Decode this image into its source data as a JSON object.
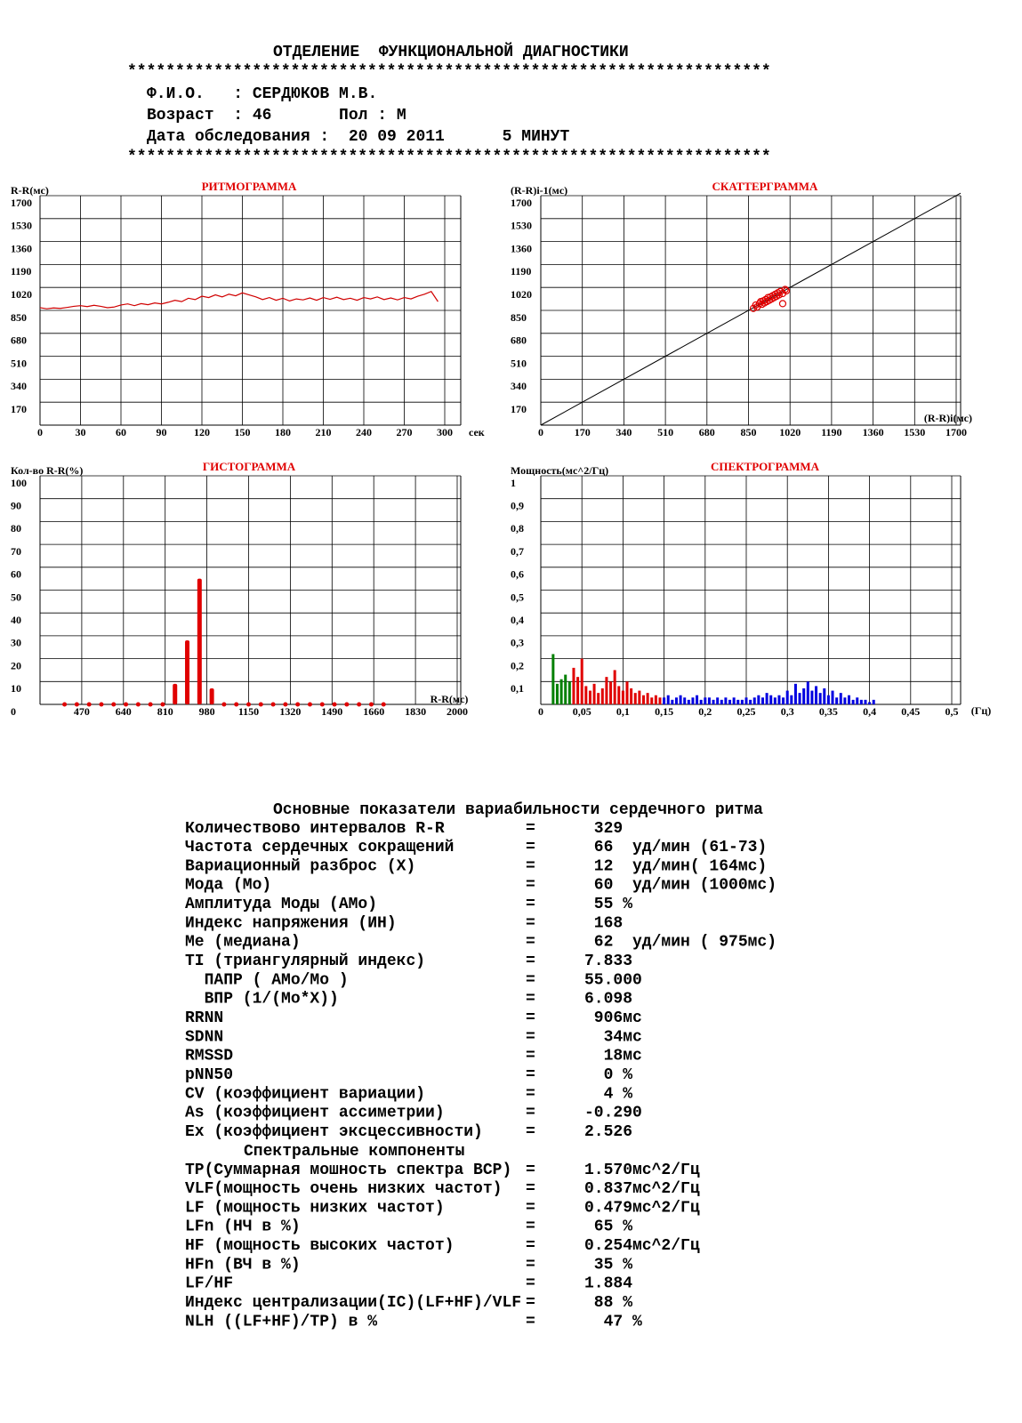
{
  "header": {
    "title": "ОТДЕЛЕНИЕ  ФУНКЦИОНАЛЬНОЙ ДИАГНОСТИКИ",
    "rule": "*******************************************************************",
    "lines": [
      "Ф.И.О.   : СЕРДЮКОВ М.В.",
      "Возраст  : 46       Пол : М",
      "Дата обследования :  20 09 2011      5 МИНУТ"
    ]
  },
  "chart_data": [
    {
      "type": "line",
      "title": "РИТМОГРАММА",
      "ylabel": "R-R(мс)",
      "xlabel": "сек",
      "color": "#d00000",
      "x": [
        0,
        5,
        10,
        15,
        20,
        25,
        30,
        35,
        40,
        45,
        50,
        55,
        60,
        65,
        70,
        75,
        80,
        85,
        90,
        95,
        100,
        105,
        110,
        115,
        120,
        125,
        130,
        135,
        140,
        145,
        150,
        155,
        160,
        165,
        170,
        175,
        180,
        185,
        190,
        195,
        200,
        205,
        210,
        215,
        220,
        225,
        230,
        235,
        240,
        245,
        250,
        255,
        260,
        265,
        270,
        275,
        280,
        285,
        290,
        295
      ],
      "values": [
        870,
        862,
        868,
        865,
        872,
        880,
        885,
        878,
        888,
        880,
        870,
        875,
        890,
        898,
        885,
        900,
        892,
        905,
        898,
        910,
        925,
        915,
        940,
        930,
        955,
        945,
        965,
        950,
        970,
        958,
        980,
        965,
        950,
        930,
        945,
        925,
        940,
        920,
        935,
        928,
        942,
        925,
        945,
        932,
        948,
        930,
        940,
        925,
        945,
        935,
        950,
        930,
        942,
        928,
        945,
        935,
        955,
        970,
        990,
        915
      ],
      "xlim": [
        0,
        300
      ],
      "ylim": [
        0,
        1700
      ],
      "xticks": [
        0,
        30,
        60,
        90,
        120,
        150,
        180,
        210,
        240,
        270,
        300
      ],
      "yticks": [
        170,
        340,
        510,
        680,
        850,
        1020,
        1190,
        1360,
        1530,
        1700
      ],
      "grid": true
    },
    {
      "type": "scatter",
      "title": "СКАТТЕРГРАММА",
      "ylabel": "(R-R)i-1(мс)",
      "xlabel": "(R-R)i(мс)",
      "color": "#e00000",
      "diagonal": true,
      "x": [
        870,
        880,
        885,
        895,
        900,
        905,
        910,
        915,
        920,
        925,
        930,
        935,
        940,
        945,
        950,
        955,
        960,
        965,
        970,
        975,
        980,
        990,
        1000,
        1005,
        990
      ],
      "values": [
        865,
        890,
        875,
        900,
        915,
        895,
        920,
        905,
        930,
        915,
        945,
        925,
        950,
        935,
        960,
        945,
        970,
        955,
        980,
        965,
        990,
        975,
        1005,
        995,
        900
      ],
      "xlim": [
        0,
        1700
      ],
      "ylim": [
        0,
        1700
      ],
      "xticks": [
        0,
        170,
        340,
        510,
        680,
        850,
        1020,
        1190,
        1360,
        1530,
        1700
      ],
      "yticks": [
        170,
        340,
        510,
        680,
        850,
        1020,
        1190,
        1360,
        1530,
        1700
      ],
      "grid": true
    },
    {
      "type": "bar",
      "title": "ГИСТОГРАММА",
      "ylabel": "Кол-во R-R(%)",
      "xlabel": "R-R(мс)",
      "color": "#e00000",
      "zero_markers": true,
      "x": [
        400,
        450,
        500,
        550,
        600,
        650,
        700,
        750,
        800,
        850,
        900,
        950,
        1000,
        1050,
        1100,
        1150,
        1200,
        1250,
        1300,
        1350,
        1400,
        1450,
        1500,
        1550,
        1600,
        1650,
        1700
      ],
      "values": [
        0,
        0,
        0,
        0,
        0,
        0,
        0,
        0,
        0,
        9,
        28,
        55,
        7,
        0,
        0,
        0,
        0,
        0,
        0,
        0,
        0,
        0,
        0,
        0,
        0,
        0,
        0
      ],
      "xlim": [
        300,
        2000
      ],
      "ylim": [
        0,
        100
      ],
      "xticks": [
        470,
        640,
        810,
        980,
        1150,
        1320,
        1490,
        1660,
        1830,
        2000
      ],
      "yticks": [
        0,
        10,
        20,
        30,
        40,
        50,
        60,
        70,
        80,
        90,
        100
      ],
      "grid": true
    },
    {
      "type": "bar",
      "title": "СПЕКТРОГРАММА",
      "ylabel": "Мощность(мс^2/Гц)",
      "xlabel": "(Гц)",
      "series": [
        {
          "color": "#008000",
          "x": [
            0.015,
            0.02,
            0.025,
            0.03,
            0.035
          ],
          "values": [
            0.22,
            0.09,
            0.11,
            0.13,
            0.1
          ]
        },
        {
          "color": "#e00000",
          "x": [
            0.04,
            0.045,
            0.05,
            0.055,
            0.06,
            0.065,
            0.07,
            0.075,
            0.08,
            0.085,
            0.09,
            0.095,
            0.1,
            0.105,
            0.11,
            0.115,
            0.12,
            0.125,
            0.13,
            0.135,
            0.14,
            0.145
          ],
          "values": [
            0.16,
            0.12,
            0.2,
            0.08,
            0.06,
            0.09,
            0.05,
            0.07,
            0.12,
            0.1,
            0.15,
            0.08,
            0.06,
            0.1,
            0.07,
            0.05,
            0.06,
            0.04,
            0.05,
            0.03,
            0.04,
            0.03
          ]
        },
        {
          "color": "#0000e0",
          "x": [
            0.15,
            0.155,
            0.16,
            0.165,
            0.17,
            0.175,
            0.18,
            0.185,
            0.19,
            0.195,
            0.2,
            0.205,
            0.21,
            0.215,
            0.22,
            0.225,
            0.23,
            0.235,
            0.24,
            0.245,
            0.25,
            0.255,
            0.26,
            0.265,
            0.27,
            0.275,
            0.28,
            0.285,
            0.29,
            0.295,
            0.3,
            0.305,
            0.31,
            0.315,
            0.32,
            0.325,
            0.33,
            0.335,
            0.34,
            0.345,
            0.35,
            0.355,
            0.36,
            0.365,
            0.37,
            0.375,
            0.38,
            0.385,
            0.39,
            0.395,
            0.4,
            0.405
          ],
          "values": [
            0.03,
            0.04,
            0.02,
            0.03,
            0.04,
            0.03,
            0.02,
            0.03,
            0.04,
            0.02,
            0.03,
            0.03,
            0.02,
            0.03,
            0.02,
            0.03,
            0.02,
            0.03,
            0.02,
            0.02,
            0.03,
            0.02,
            0.03,
            0.04,
            0.03,
            0.05,
            0.04,
            0.03,
            0.04,
            0.03,
            0.06,
            0.04,
            0.09,
            0.05,
            0.07,
            0.1,
            0.06,
            0.08,
            0.05,
            0.07,
            0.04,
            0.06,
            0.03,
            0.05,
            0.03,
            0.04,
            0.02,
            0.03,
            0.02,
            0.02,
            0.01,
            0.02
          ]
        }
      ],
      "xlim": [
        0,
        0.5
      ],
      "ylim": [
        0,
        1
      ],
      "xticks": [
        0,
        {
          "value": 0.05,
          "label": "0,05"
        },
        {
          "value": 0.1,
          "label": "0,1"
        },
        {
          "value": 0.15,
          "label": "0,15"
        },
        {
          "value": 0.2,
          "label": "0,2"
        },
        {
          "value": 0.25,
          "label": "0,25"
        },
        {
          "value": 0.3,
          "label": "0,3"
        },
        {
          "value": 0.35,
          "label": "0,35"
        },
        {
          "value": 0.4,
          "label": "0,4"
        },
        {
          "value": 0.45,
          "label": "0,45"
        },
        {
          "value": 0.5,
          "label": "0,5"
        }
      ],
      "yticks": [
        {
          "value": 0.1,
          "label": "0,1"
        },
        {
          "value": 0.2,
          "label": "0,2"
        },
        {
          "value": 0.3,
          "label": "0,3"
        },
        {
          "value": 0.4,
          "label": "0,4"
        },
        {
          "value": 0.5,
          "label": "0,5"
        },
        {
          "value": 0.6,
          "label": "0,6"
        },
        {
          "value": 0.7,
          "label": "0,7"
        },
        {
          "value": 0.8,
          "label": "0,8"
        },
        {
          "value": 0.9,
          "label": "0,9"
        },
        1
      ],
      "grid": true
    }
  ],
  "table": {
    "title": "Основные показатели вариабильности сердечного ритма",
    "rows": [
      [
        "Количествово интервалов R-R",
        "=",
        " 329"
      ],
      [
        "Частота сердечных сокращений",
        "=",
        " 66  уд/мин (61-73)"
      ],
      [
        "Вариационный разброс (Х)",
        "=",
        " 12  уд/мин( 164мс)"
      ],
      [
        "Мода (Мо)",
        "=",
        " 60  уд/мин (1000мс)"
      ],
      [
        "Амплитуда Моды (АМо)",
        "=",
        " 55 %"
      ],
      [
        "Индекс напряжения (ИН)",
        "=",
        " 168"
      ],
      [
        "Ме (медиана)",
        "=",
        " 62  уд/мин ( 975мс)"
      ],
      [
        "TI (триангулярный индекс)",
        "=",
        "7.833"
      ],
      [
        "  ПАПР ( АМо/Мо )",
        "=",
        "55.000"
      ],
      [
        "  ВПР (1/(Мо*Х))",
        "=",
        "6.098"
      ],
      [
        "RRNN",
        "=",
        " 906мс"
      ],
      [
        "SDNN",
        "=",
        "  34мс"
      ],
      [
        "RMSSD",
        "=",
        "  18мс"
      ],
      [
        "pNN50",
        "=",
        "  0 %"
      ],
      [
        "CV (коэффициент вариации)",
        "=",
        "  4 %"
      ],
      [
        "As (коэффициент ассиметрии)",
        "=",
        "-0.290"
      ],
      [
        "Ex (коэффициент эксцессивности)",
        "=",
        "2.526"
      ]
    ],
    "subtitle": "Спектральные компоненты",
    "spectral_rows": [
      [
        "TP(Суммарная мошность спектра ВСР)",
        "=",
        "1.570мс^2/Гц"
      ],
      [
        "VLF(мощность очень низких частот)",
        "=",
        "0.837мс^2/Гц"
      ],
      [
        "LF (мощность низких частот)",
        "=",
        "0.479мс^2/Гц"
      ],
      [
        "LFn (НЧ в %)",
        "=",
        " 65 %"
      ],
      [
        "HF (мощность высоких частот)",
        "=",
        "0.254мс^2/Гц"
      ],
      [
        "HFn (ВЧ в %)",
        "=",
        " 35 %"
      ],
      [
        "LF/HF",
        "=",
        "1.884"
      ],
      [
        "Индекс централизации(IC)(LF+HF)/VLF",
        "=",
        " 88 %"
      ],
      [
        "NLH ((LF+HF)/TP) в %",
        "=",
        "  47 %"
      ]
    ]
  }
}
